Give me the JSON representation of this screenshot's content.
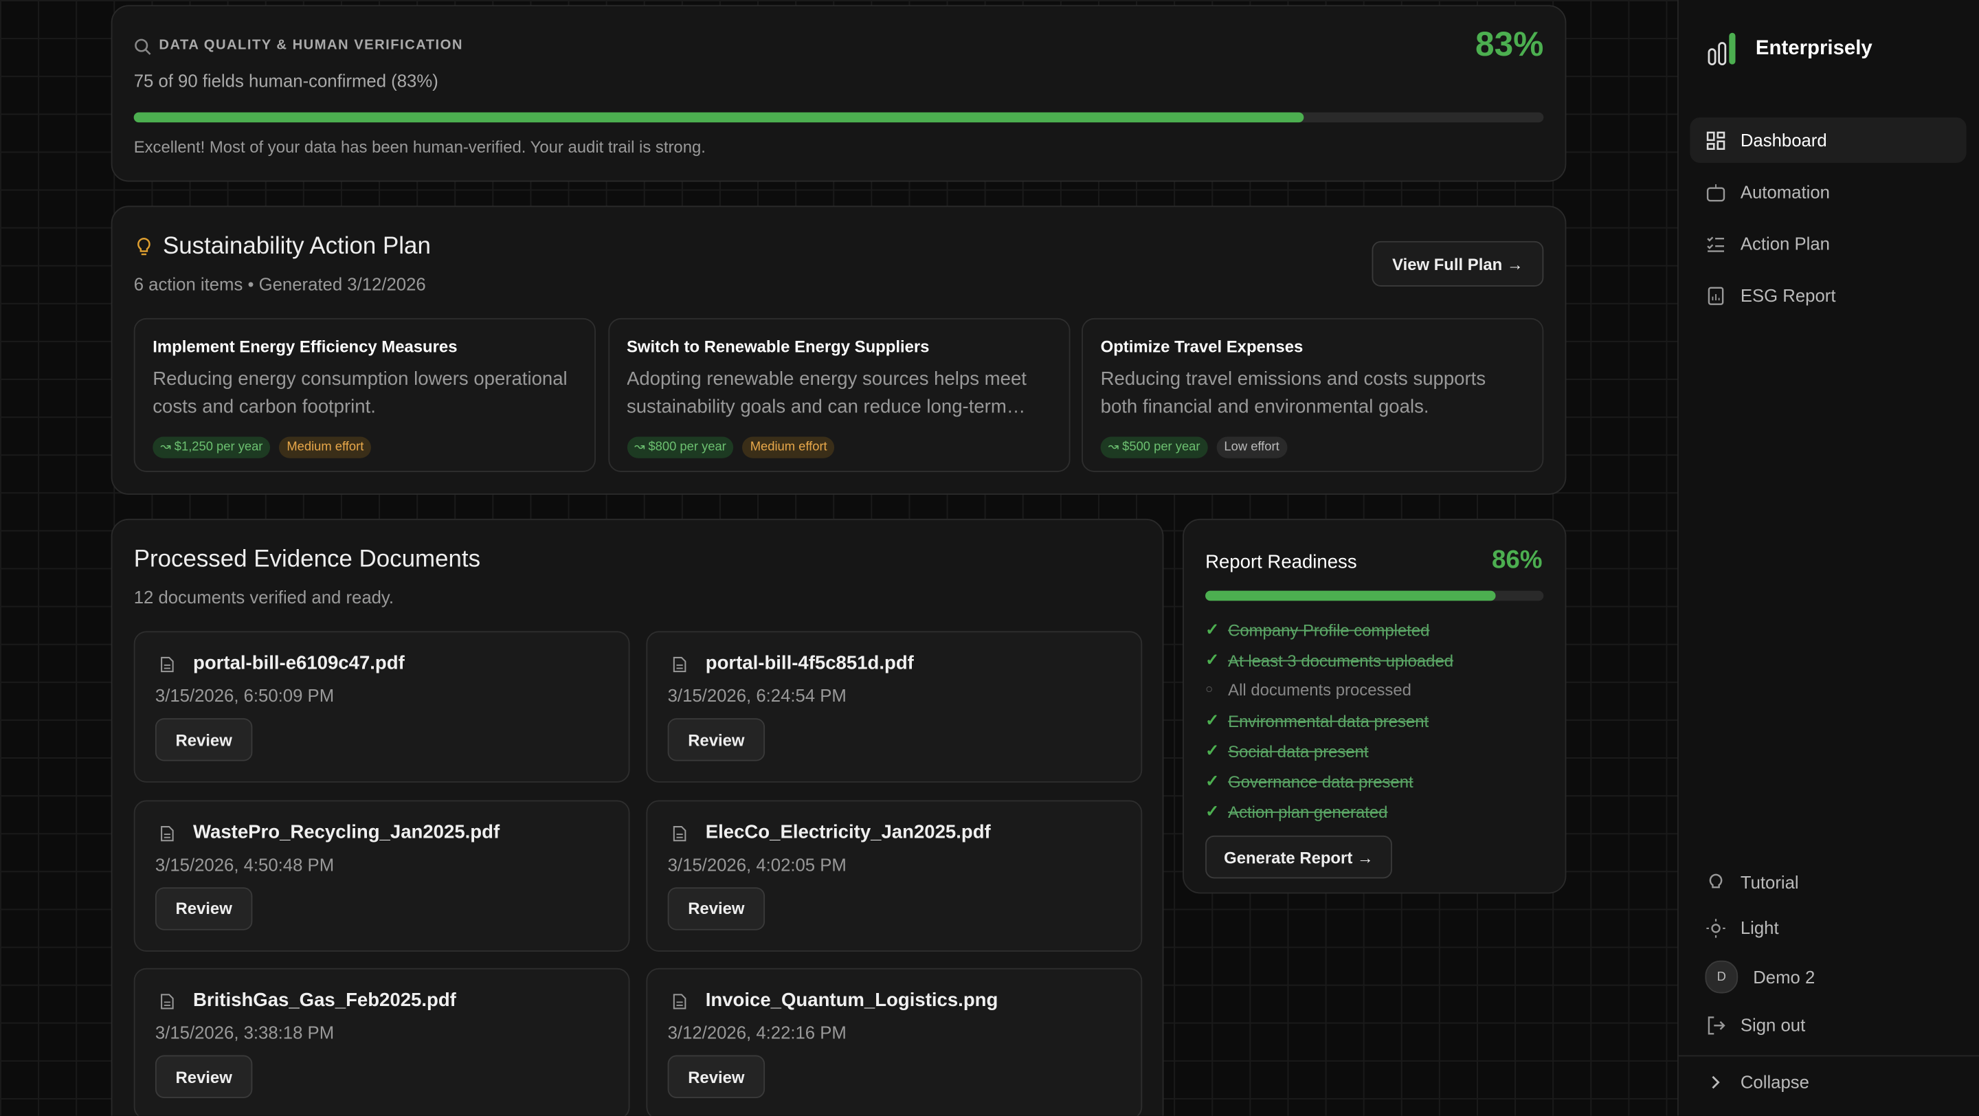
{
  "quality": {
    "title": "DATA QUALITY & HUMAN VERIFICATION",
    "score": {
      "value": 83,
      "label": "83%"
    },
    "summary": "75 of 90 fields human-confirmed (83%)",
    "note": "Excellent! Most of your data has been human-verified. Your audit trail is strong."
  },
  "action_plan": {
    "title": "Sustainability Action Plan",
    "subtitle": "6 action items • Generated 3/12/2026",
    "button": "View Full Plan →",
    "items": [
      {
        "title": "Implement Energy Efficiency Measures",
        "description": "Reducing energy consumption lowers operational costs and carbon footprint.",
        "savings": "↝ $1,250 per year",
        "effort": "Medium effort",
        "effort_level": "medium"
      },
      {
        "title": "Switch to Renewable Energy Suppliers",
        "description": "Adopting renewable energy sources helps meet sustainability goals and can reduce long-term…",
        "savings": "↝ $800 per year",
        "effort": "Medium effort",
        "effort_level": "medium"
      },
      {
        "title": "Optimize Travel Expenses",
        "description": "Reducing travel emissions and costs supports both financial and environmental goals.",
        "savings": "↝ $500 per year",
        "effort": "Low effort",
        "effort_level": "low"
      }
    ]
  },
  "documents": {
    "title": "Processed Evidence Documents",
    "subtitle": "12 documents verified and ready.",
    "button": "Review",
    "items": [
      {
        "name": "portal-bill-e6109c47.pdf",
        "date": "3/15/2026, 6:50:09 PM"
      },
      {
        "name": "portal-bill-4f5c851d.pdf",
        "date": "3/15/2026, 6:24:54 PM"
      },
      {
        "name": "WastePro_Recycling_Jan2025.pdf",
        "date": "3/15/2026, 4:50:48 PM"
      },
      {
        "name": "ElecCo_Electricity_Jan2025.pdf",
        "date": "3/15/2026, 4:02:05 PM"
      },
      {
        "name": "BritishGas_Gas_Feb2025.pdf",
        "date": "3/15/2026, 3:38:18 PM"
      },
      {
        "name": "Invoice_Quantum_Logistics.png",
        "date": "3/12/2026, 4:22:16 PM"
      }
    ]
  },
  "readiness": {
    "title": "Report Readiness",
    "score": {
      "value": 86,
      "label": "86%"
    },
    "button": "Generate Report →",
    "checklist": [
      {
        "label": "Company Profile completed",
        "done": true
      },
      {
        "label": "At least 3 documents uploaded",
        "done": true
      },
      {
        "label": "All documents processed",
        "done": false
      },
      {
        "label": "Environmental data present",
        "done": true
      },
      {
        "label": "Social data present",
        "done": true
      },
      {
        "label": "Governance data present",
        "done": true
      },
      {
        "label": "Action plan generated",
        "done": true
      }
    ]
  },
  "sidebar": {
    "brand": "Enterprisely",
    "nav": [
      "Dashboard",
      "Automation",
      "Action Plan",
      "ESG Report"
    ],
    "tutorial": "Tutorial",
    "theme": "Light",
    "avatar": "D",
    "user": "Demo 2",
    "sign_out": "Sign out",
    "collapse": "Collapse"
  }
}
